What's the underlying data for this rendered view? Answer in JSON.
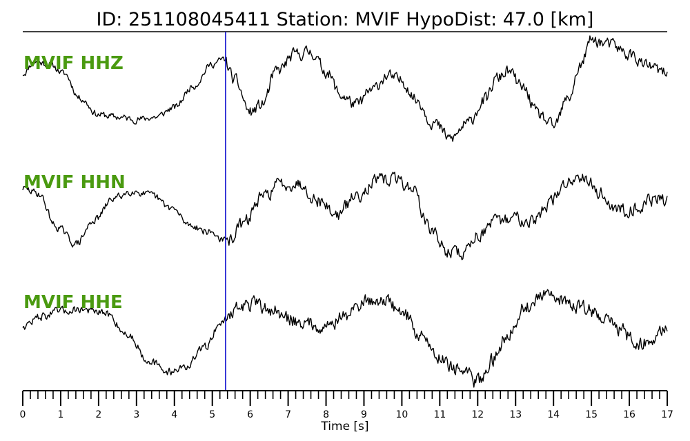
{
  "chart_data": {
    "type": "line",
    "title": "ID: 251108045411   Station: MVIF   HypoDist:     47.0 [km]",
    "xlabel": "Time [s]",
    "xlim": [
      0,
      17
    ],
    "x_ticks": [
      "0",
      "1",
      "2",
      "3",
      "4",
      "5",
      "6",
      "7",
      "8",
      "9",
      "10",
      "11",
      "12",
      "13",
      "14",
      "15",
      "16",
      "17"
    ],
    "grid": false,
    "pick_time": 5.35,
    "colors": {
      "trace": "#000000",
      "label": "#4a9a10",
      "pick": "#0000cc"
    },
    "series": [
      {
        "name": "MVIF HHZ",
        "keypoints": [
          [
            0,
            0.3
          ],
          [
            0.3,
            0.55
          ],
          [
            0.7,
            0.5
          ],
          [
            1.1,
            0.3
          ],
          [
            1.5,
            -0.2
          ],
          [
            2.0,
            -0.55
          ],
          [
            2.5,
            -0.6
          ],
          [
            3.0,
            -0.65
          ],
          [
            3.5,
            -0.6
          ],
          [
            4.0,
            -0.4
          ],
          [
            4.5,
            0.05
          ],
          [
            5.0,
            0.5
          ],
          [
            5.3,
            0.6
          ],
          [
            5.6,
            0.15
          ],
          [
            6.0,
            -0.5
          ],
          [
            6.3,
            -0.35
          ],
          [
            6.7,
            0.35
          ],
          [
            7.2,
            0.7
          ],
          [
            7.6,
            0.75
          ],
          [
            8.0,
            0.35
          ],
          [
            8.4,
            -0.15
          ],
          [
            8.8,
            -0.35
          ],
          [
            9.2,
            -0.05
          ],
          [
            9.6,
            0.25
          ],
          [
            10.0,
            0.15
          ],
          [
            10.4,
            -0.25
          ],
          [
            10.8,
            -0.7
          ],
          [
            11.3,
            -1.05
          ],
          [
            11.7,
            -0.75
          ],
          [
            12.2,
            -0.25
          ],
          [
            12.5,
            0.2
          ],
          [
            12.8,
            0.35
          ],
          [
            13.2,
            0.0
          ],
          [
            13.6,
            -0.55
          ],
          [
            14.0,
            -0.8
          ],
          [
            14.4,
            -0.2
          ],
          [
            14.7,
            0.45
          ],
          [
            15.0,
            1.0
          ],
          [
            15.5,
            0.9
          ],
          [
            16.0,
            0.7
          ],
          [
            16.5,
            0.45
          ],
          [
            17.0,
            0.3
          ]
        ],
        "noise": 0.2,
        "seed": 11
      },
      {
        "name": "MVIF HHN",
        "keypoints": [
          [
            0,
            0.45
          ],
          [
            0.4,
            0.35
          ],
          [
            0.9,
            -0.35
          ],
          [
            1.4,
            -0.7
          ],
          [
            1.9,
            -0.2
          ],
          [
            2.4,
            0.25
          ],
          [
            2.9,
            0.4
          ],
          [
            3.4,
            0.3
          ],
          [
            3.9,
            0.05
          ],
          [
            4.4,
            -0.3
          ],
          [
            4.9,
            -0.45
          ],
          [
            5.4,
            -0.65
          ],
          [
            5.8,
            -0.3
          ],
          [
            6.3,
            0.25
          ],
          [
            6.8,
            0.55
          ],
          [
            7.3,
            0.55
          ],
          [
            7.8,
            0.2
          ],
          [
            8.3,
            -0.1
          ],
          [
            8.8,
            0.3
          ],
          [
            9.3,
            0.6
          ],
          [
            9.8,
            0.65
          ],
          [
            10.3,
            0.45
          ],
          [
            10.7,
            -0.35
          ],
          [
            11.2,
            -0.85
          ],
          [
            11.6,
            -0.9
          ],
          [
            12.0,
            -0.5
          ],
          [
            12.5,
            -0.25
          ],
          [
            13.0,
            -0.15
          ],
          [
            13.5,
            -0.2
          ],
          [
            13.9,
            0.15
          ],
          [
            14.4,
            0.6
          ],
          [
            14.8,
            0.75
          ],
          [
            15.2,
            0.35
          ],
          [
            15.7,
            0.0
          ],
          [
            16.2,
            0.05
          ],
          [
            16.7,
            0.25
          ],
          [
            17.0,
            0.15
          ]
        ],
        "noise": 0.22,
        "seed": 29
      },
      {
        "name": "MVIF HHE",
        "keypoints": [
          [
            0,
            0.1
          ],
          [
            0.5,
            0.3
          ],
          [
            1.0,
            0.4
          ],
          [
            1.5,
            0.45
          ],
          [
            2.2,
            0.35
          ],
          [
            2.8,
            -0.1
          ],
          [
            3.3,
            -0.6
          ],
          [
            3.8,
            -0.85
          ],
          [
            4.3,
            -0.75
          ],
          [
            4.8,
            -0.35
          ],
          [
            5.2,
            0.15
          ],
          [
            5.6,
            0.45
          ],
          [
            6.0,
            0.55
          ],
          [
            6.5,
            0.45
          ],
          [
            7.0,
            0.25
          ],
          [
            7.5,
            0.15
          ],
          [
            8.0,
            0.1
          ],
          [
            8.5,
            0.3
          ],
          [
            9.0,
            0.6
          ],
          [
            9.5,
            0.65
          ],
          [
            10.0,
            0.4
          ],
          [
            10.5,
            -0.1
          ],
          [
            11.0,
            -0.55
          ],
          [
            11.5,
            -0.8
          ],
          [
            12.0,
            -1.05
          ],
          [
            12.4,
            -0.6
          ],
          [
            12.8,
            -0.05
          ],
          [
            13.2,
            0.45
          ],
          [
            13.7,
            0.7
          ],
          [
            14.2,
            0.65
          ],
          [
            14.7,
            0.5
          ],
          [
            15.2,
            0.35
          ],
          [
            15.7,
            0.05
          ],
          [
            16.2,
            -0.25
          ],
          [
            16.6,
            -0.2
          ],
          [
            17.0,
            0.1
          ]
        ],
        "noise": 0.24,
        "seed": 47
      }
    ]
  }
}
